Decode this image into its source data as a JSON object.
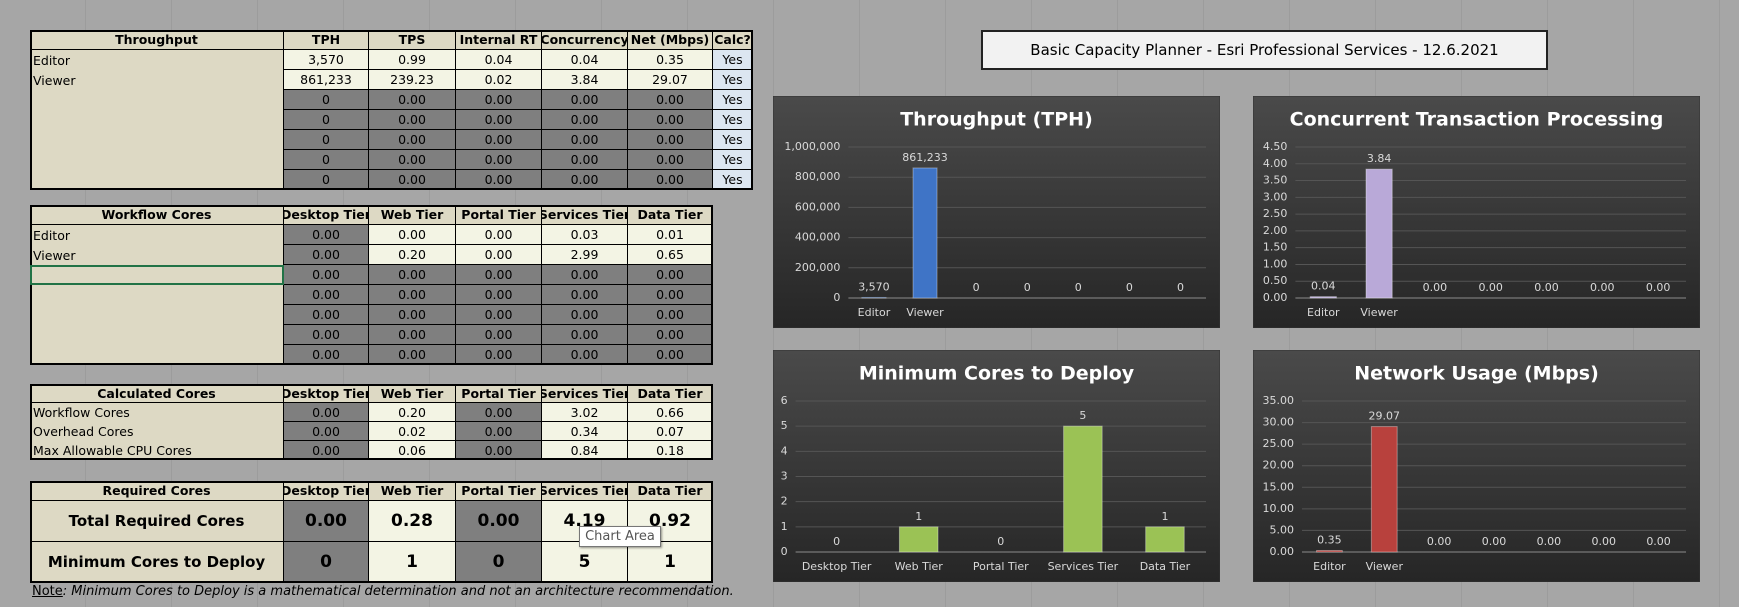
{
  "title": "Basic Capacity Planner - Esri Professional Services - 12.6.2021",
  "tables": [
    {
      "header": [
        "Throughput",
        "TPH",
        "TPS",
        "Internal RT",
        "Concurrency",
        "Net (Mbps)",
        "Calc?"
      ],
      "rows": [
        [
          "Editor",
          "3,570",
          "0.99",
          "0.04",
          "0.04",
          "0.35",
          "Yes"
        ],
        [
          "Viewer",
          "861,233",
          "239.23",
          "0.02",
          "3.84",
          "29.07",
          "Yes"
        ],
        [
          null,
          "0",
          "0.00",
          "0.00",
          "0.00",
          "0.00",
          "Yes"
        ],
        [
          null,
          "0",
          "0.00",
          "0.00",
          "0.00",
          "0.00",
          "Yes"
        ],
        [
          null,
          "0",
          "0.00",
          "0.00",
          "0.00",
          "0.00",
          "Yes"
        ],
        [
          null,
          "0",
          "0.00",
          "0.00",
          "0.00",
          "0.00",
          "Yes"
        ],
        [
          null,
          "0",
          "0.00",
          "0.00",
          "0.00",
          "0.00",
          "Yes"
        ]
      ]
    },
    {
      "header": [
        "Workflow Cores",
        "Desktop Tier",
        "Web Tier",
        "Portal Tier",
        "Services Tier",
        "Data Tier"
      ],
      "rows": [
        [
          "Editor",
          "0.00",
          "0.00",
          "0.00",
          "0.03",
          "0.01"
        ],
        [
          "Viewer",
          "0.00",
          "0.20",
          "0.00",
          "2.99",
          "0.65"
        ],
        [
          null,
          "0.00",
          "0.00",
          "0.00",
          "0.00",
          "0.00"
        ],
        [
          null,
          "0.00",
          "0.00",
          "0.00",
          "0.00",
          "0.00"
        ],
        [
          null,
          "0.00",
          "0.00",
          "0.00",
          "0.00",
          "0.00"
        ],
        [
          null,
          "0.00",
          "0.00",
          "0.00",
          "0.00",
          "0.00"
        ],
        [
          null,
          "0.00",
          "0.00",
          "0.00",
          "0.00",
          "0.00"
        ]
      ]
    },
    {
      "header": [
        "Calculated Cores",
        "Desktop Tier",
        "Web Tier",
        "Portal Tier",
        "Services Tier",
        "Data Tier"
      ],
      "rows": [
        [
          "Workflow Cores",
          "0.00",
          "0.20",
          "0.00",
          "3.02",
          "0.66"
        ],
        [
          "Overhead Cores",
          "0.00",
          "0.02",
          "0.00",
          "0.34",
          "0.07"
        ],
        [
          "Max Allowable CPU Cores",
          "0.00",
          "0.06",
          "0.00",
          "0.84",
          "0.18"
        ]
      ]
    },
    {
      "header": [
        "Required Cores",
        "Desktop Tier",
        "Web Tier",
        "Portal Tier",
        "Services Tier",
        "Data Tier"
      ],
      "rows": [
        [
          "Total Required Cores",
          "0.00",
          "0.28",
          "0.00",
          "4.19",
          "0.92"
        ],
        [
          "Minimum Cores to Deploy",
          "0",
          "1",
          "0",
          "5",
          "1"
        ]
      ]
    }
  ],
  "note": {
    "label": "Note",
    "text": ": Minimum Cores to Deploy is a mathematical determination and not an architecture recommendation."
  },
  "tooltip": "Chart Area",
  "chart_data": [
    {
      "type": "bar",
      "title": "Throughput (TPH)",
      "color": "#3f74c6",
      "grid": true,
      "categories": [
        "Editor",
        "Viewer",
        null,
        null,
        null,
        null,
        null
      ],
      "values": [
        3570,
        861233,
        0,
        0,
        0,
        0,
        0
      ],
      "value_labels": [
        "3,570",
        "861,233",
        "0",
        "0",
        "0",
        "0",
        "0"
      ],
      "ylim": [
        0,
        1000000
      ],
      "yticks": [
        0,
        {
          "value": 200000,
          "label": "200,000"
        },
        {
          "value": 400000,
          "label": "400,000"
        },
        {
          "value": 600000,
          "label": "600,000"
        },
        {
          "value": 800000,
          "label": "800,000"
        },
        {
          "value": 1000000,
          "label": "1,000,000"
        }
      ]
    },
    {
      "type": "bar",
      "title": "Concurrent Transaction Processing",
      "color": "#b9a9d8",
      "grid": true,
      "categories": [
        "Editor",
        "Viewer",
        null,
        null,
        null,
        null,
        null
      ],
      "values": [
        0.04,
        3.84,
        0,
        0,
        0,
        0,
        0
      ],
      "value_labels": [
        "0.04",
        "3.84",
        "0.00",
        "0.00",
        "0.00",
        "0.00",
        "0.00"
      ],
      "ylim": [
        0,
        4.5
      ],
      "yticks": [
        {
          "value": 0,
          "label": "0.00"
        },
        {
          "value": 0.5,
          "label": "0.50"
        },
        {
          "value": 1,
          "label": "1.00"
        },
        {
          "value": 1.5,
          "label": "1.50"
        },
        {
          "value": 2,
          "label": "2.00"
        },
        {
          "value": 2.5,
          "label": "2.50"
        },
        {
          "value": 3,
          "label": "3.00"
        },
        {
          "value": 3.5,
          "label": "3.50"
        },
        {
          "value": 4,
          "label": "4.00"
        },
        {
          "value": 4.5,
          "label": "4.50"
        }
      ]
    },
    {
      "type": "bar",
      "title": "Minimum Cores to Deploy",
      "color": "#9bc255",
      "grid": true,
      "categories": [
        "Desktop Tier",
        "Web Tier",
        "Portal Tier",
        "Services Tier",
        "Data Tier"
      ],
      "values": [
        0,
        1,
        0,
        5,
        1
      ],
      "ylim": [
        0,
        6
      ],
      "yticks": [
        0,
        1,
        2,
        3,
        4,
        5,
        6
      ]
    },
    {
      "type": "bar",
      "title": "Network Usage (Mbps)",
      "color": "#b8413d",
      "grid": true,
      "categories": [
        "Editor",
        "Viewer",
        null,
        null,
        null,
        null,
        null
      ],
      "values": [
        0.35,
        29.07,
        0,
        0,
        0,
        0,
        0
      ],
      "value_labels": [
        "0.35",
        "29.07",
        "0.00",
        "0.00",
        "0.00",
        "0.00",
        "0.00"
      ],
      "ylim": [
        0,
        35
      ],
      "yticks": [
        {
          "value": 0,
          "label": "0.00"
        },
        {
          "value": 5,
          "label": "5.00"
        },
        {
          "value": 10,
          "label": "10.00"
        },
        {
          "value": 15,
          "label": "15.00"
        },
        {
          "value": 20,
          "label": "20.00"
        },
        {
          "value": 25,
          "label": "25.00"
        },
        {
          "value": 30,
          "label": "30.00"
        },
        {
          "value": 35,
          "label": "35.00"
        }
      ]
    }
  ]
}
